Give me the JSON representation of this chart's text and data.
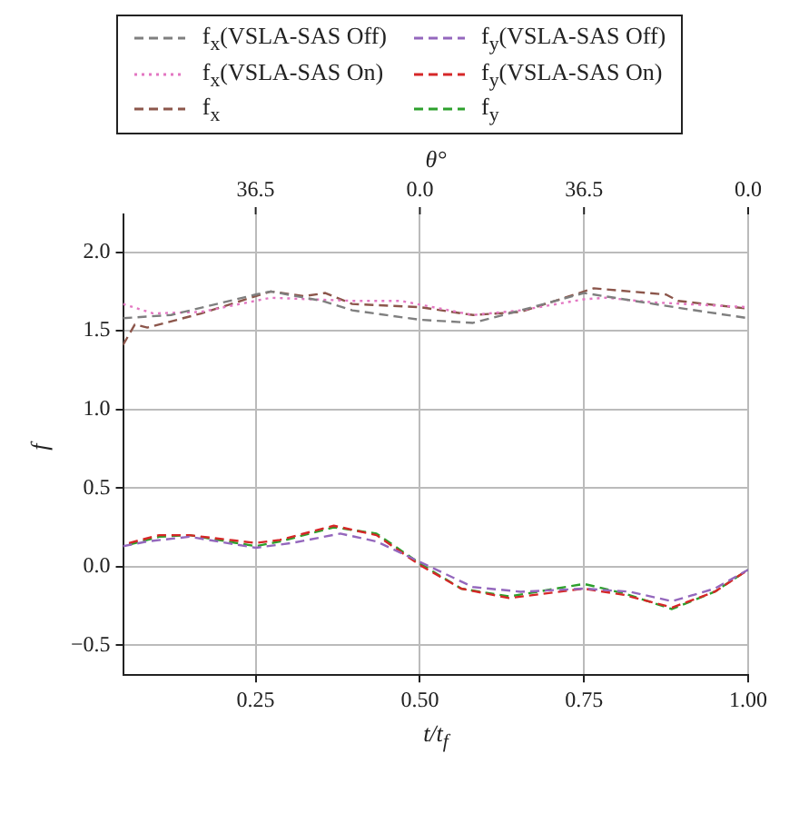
{
  "chart_data": {
    "type": "line",
    "xlabel": "t/t$_{f}$",
    "ylabel": "f",
    "x2label": "θ°",
    "xlim": [
      0.048,
      1.0
    ],
    "ylim": [
      -0.69,
      2.24
    ],
    "xticks": [
      {
        "value": 0.25,
        "label": "0.25"
      },
      {
        "value": 0.5,
        "label": "0.50"
      },
      {
        "value": 0.75,
        "label": "0.75"
      },
      {
        "value": 1.0,
        "label": "1.00"
      }
    ],
    "annotations": [
      {
        "text": "36.5",
        "x": 0.25
      },
      {
        "text": "0.0",
        "x": 0.5
      },
      {
        "text": "36.5",
        "x": 0.75
      },
      {
        "text": "0.0",
        "x": 1.0
      }
    ],
    "yticks": [
      {
        "value": -0.5,
        "label": "−0.5"
      },
      {
        "value": 0,
        "label": "0.0"
      },
      {
        "value": 0.5,
        "label": "0.5"
      },
      {
        "value": 1.0,
        "label": "1.0"
      },
      {
        "value": 1.5,
        "label": "1.5"
      },
      {
        "value": 2.0,
        "label": "2.0"
      }
    ],
    "grid": true,
    "legend": "top",
    "marker": "none",
    "series": [
      {
        "name": "f$_{x}$(VSLA-SAS Off)",
        "color": "#7f7f7f",
        "line_style": "dashed",
        "x": [
          0.048,
          0.121,
          0.25,
          0.273,
          0.351,
          0.397,
          0.5,
          0.581,
          0.654,
          0.75,
          0.811,
          0.903,
          1.0
        ],
        "values": [
          1.58,
          1.6,
          1.73,
          1.75,
          1.69,
          1.63,
          1.57,
          1.55,
          1.63,
          1.74,
          1.7,
          1.64,
          1.58
        ]
      },
      {
        "name": "f$_{x}$(VSLA-SAS On)",
        "color": "#e377c2",
        "line_style": "dotted",
        "x": [
          0.048,
          0.094,
          0.167,
          0.273,
          0.397,
          0.471,
          0.581,
          0.654,
          0.75,
          0.783,
          0.857,
          1.0
        ],
        "values": [
          1.67,
          1.61,
          1.62,
          1.71,
          1.69,
          1.69,
          1.6,
          1.63,
          1.7,
          1.71,
          1.68,
          1.65
        ]
      },
      {
        "name": "f$_{x}$",
        "color": "#8c564b",
        "line_style": "dashed",
        "x": [
          0.048,
          0.066,
          0.085,
          0.167,
          0.273,
          0.324,
          0.356,
          0.397,
          0.5,
          0.581,
          0.654,
          0.765,
          0.875,
          0.893,
          1.0
        ],
        "values": [
          1.41,
          1.54,
          1.52,
          1.61,
          1.75,
          1.72,
          1.74,
          1.67,
          1.65,
          1.6,
          1.62,
          1.77,
          1.73,
          1.69,
          1.64
        ]
      },
      {
        "name": "f$_{y}$(VSLA-SAS Off)",
        "color": "#9467bd",
        "line_style": "dashed",
        "x": [
          0.048,
          0.085,
          0.149,
          0.25,
          0.305,
          0.379,
          0.434,
          0.5,
          0.581,
          0.654,
          0.75,
          0.82,
          0.884,
          0.949,
          1.0
        ],
        "values": [
          0.13,
          0.16,
          0.19,
          0.12,
          0.15,
          0.21,
          0.16,
          0.03,
          -0.13,
          -0.16,
          -0.14,
          -0.16,
          -0.22,
          -0.14,
          -0.02
        ]
      },
      {
        "name": "f$_{y}$(VSLA-SAS On)",
        "color": "#d62728",
        "line_style": "dashed",
        "x": [
          0.057,
          0.103,
          0.149,
          0.25,
          0.287,
          0.369,
          0.434,
          0.5,
          0.563,
          0.636,
          0.75,
          0.811,
          0.884,
          0.949,
          1.0
        ],
        "values": [
          0.15,
          0.2,
          0.2,
          0.15,
          0.17,
          0.26,
          0.2,
          0.01,
          -0.14,
          -0.2,
          -0.14,
          -0.18,
          -0.26,
          -0.16,
          -0.02
        ]
      },
      {
        "name": "f$_{y}$",
        "color": "#2ca02c",
        "line_style": "dashed",
        "x": [
          0.057,
          0.103,
          0.149,
          0.25,
          0.287,
          0.369,
          0.434,
          0.5,
          0.563,
          0.636,
          0.75,
          0.811,
          0.884,
          0.949,
          1.0
        ],
        "values": [
          0.14,
          0.19,
          0.2,
          0.13,
          0.16,
          0.25,
          0.21,
          0.02,
          -0.14,
          -0.19,
          -0.11,
          -0.17,
          -0.27,
          -0.16,
          -0.02
        ]
      }
    ]
  }
}
